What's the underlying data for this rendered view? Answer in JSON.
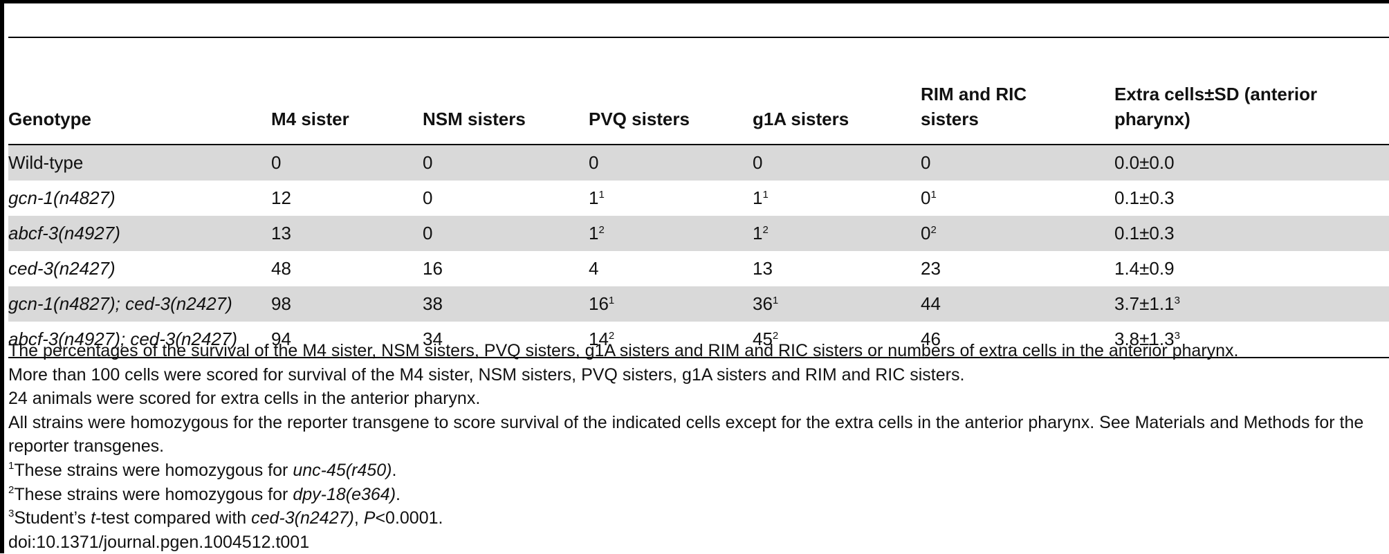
{
  "table": {
    "headers": [
      "Genotype",
      "M4 sister",
      "NSM sisters",
      "PVQ sisters",
      "g1A sisters",
      "RIM and RIC sisters",
      "Extra cells±SD (anterior pharynx)"
    ],
    "rows": [
      {
        "genotype": "Wild-type",
        "m4": "0",
        "nsm": "0",
        "pvq": "0",
        "pvq_sup": "",
        "g1a": "0",
        "g1a_sup": "",
        "rim": "0",
        "rim_sup": "",
        "extra": "0.0±0.0",
        "extra_sup": ""
      },
      {
        "genotype": "gcn-1(n4827)",
        "m4": "12",
        "nsm": "0",
        "pvq": "1",
        "pvq_sup": "1",
        "g1a": "1",
        "g1a_sup": "1",
        "rim": "0",
        "rim_sup": "1",
        "extra": "0.1±0.3",
        "extra_sup": ""
      },
      {
        "genotype": "abcf-3(n4927)",
        "m4": "13",
        "nsm": "0",
        "pvq": "1",
        "pvq_sup": "2",
        "g1a": "1",
        "g1a_sup": "2",
        "rim": "0",
        "rim_sup": "2",
        "extra": "0.1±0.3",
        "extra_sup": ""
      },
      {
        "genotype": "ced-3(n2427)",
        "m4": "48",
        "nsm": "16",
        "pvq": "4",
        "pvq_sup": "",
        "g1a": "13",
        "g1a_sup": "",
        "rim": "23",
        "rim_sup": "",
        "extra": "1.4±0.9",
        "extra_sup": ""
      },
      {
        "genotype": "gcn-1(n4827); ced-3(n2427)",
        "m4": "98",
        "nsm": "38",
        "pvq": "16",
        "pvq_sup": "1",
        "g1a": "36",
        "g1a_sup": "1",
        "rim": "44",
        "rim_sup": "",
        "extra": "3.7±1.1",
        "extra_sup": "3"
      },
      {
        "genotype": "abcf-3(n4927); ced-3(n2427)",
        "m4": "94",
        "nsm": "34",
        "pvq": "14",
        "pvq_sup": "2",
        "g1a": "45",
        "g1a_sup": "2",
        "rim": "46",
        "rim_sup": "",
        "extra": "3.8±1.3",
        "extra_sup": "3"
      }
    ]
  },
  "notes": {
    "line1": "The percentages of the survival of the M4 sister, NSM sisters, PVQ sisters, g1A sisters and RIM and RIC sisters or numbers of extra cells in the anterior pharynx.",
    "line2": "More than 100 cells were scored for survival of the M4 sister, NSM sisters, PVQ sisters, g1A sisters and RIM and RIC sisters.",
    "line3": "24 animals were scored for extra cells in the anterior pharynx.",
    "line4": "All strains were homozygous for the reporter transgene to score survival of the indicated cells except for the extra cells in the anterior pharynx. See Materials and Methods for the reporter transgenes.",
    "fn1_mark": "1",
    "fn1_text": "These strains were homozygous for ",
    "fn1_gene": "unc-45(r450)",
    "fn1_end": ".",
    "fn2_mark": "2",
    "fn2_text": "These strains were homozygous for ",
    "fn2_gene": "dpy-18(e364)",
    "fn2_end": ".",
    "fn3_mark": "3",
    "fn3_a": "Student’s ",
    "fn3_t": "t",
    "fn3_b": "-test compared with ",
    "fn3_gene": "ced-3(n2427)",
    "fn3_c": ", ",
    "fn3_p": "P",
    "fn3_d": "<0.0001.",
    "doi": "doi:10.1371/journal.pgen.1004512.t001"
  },
  "colors": {
    "shaded_row": "#d9d9d9",
    "rule": "#000000"
  }
}
